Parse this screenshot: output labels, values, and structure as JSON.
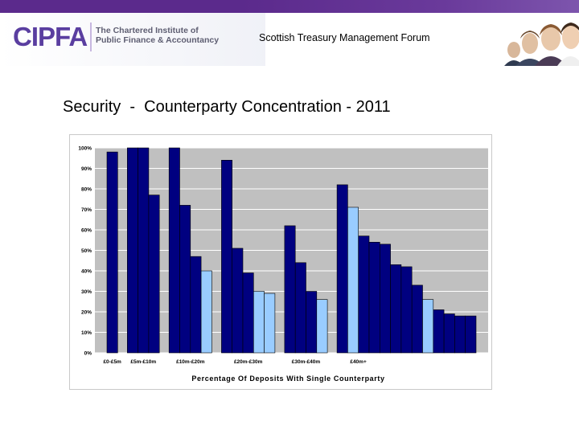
{
  "header": {
    "logo_word": "CIPFA",
    "logo_tagline_line1": "The Chartered Institute of",
    "logo_tagline_line2": "Public Finance & Accountancy",
    "forum_title": "Scottish Treasury Management Forum",
    "brand_purple": "#5b2a8c",
    "photo_icon": "people-photo-icon"
  },
  "slide": {
    "title": "Security  -  Counterparty Concentration - 2011"
  },
  "chart_data": {
    "type": "bar",
    "title": "",
    "xlabel": "Percentage Of Deposits With Single Counterparty",
    "ylabel": "",
    "ylim": [
      0,
      100
    ],
    "y_ticks": [
      "0%",
      "10%",
      "20%",
      "30%",
      "40%",
      "50%",
      "60%",
      "70%",
      "80%",
      "90%",
      "100%"
    ],
    "grid": true,
    "plot_background": "#c0c0c0",
    "group_labels": [
      "£0-£5m",
      "£5m-£10m",
      "£10m-£20m",
      "£20m-£30m",
      "£30m-£40m",
      "£40m+"
    ],
    "groups": [
      {
        "label": "£0-£5m",
        "values": [
          98
        ],
        "highlight": [
          false
        ]
      },
      {
        "label": "£5m-£10m",
        "values": [
          100,
          100,
          77
        ],
        "highlight": [
          false,
          false,
          false
        ]
      },
      {
        "label": "£10m-£20m",
        "values": [
          100,
          72,
          47,
          40
        ],
        "highlight": [
          false,
          false,
          false,
          true
        ]
      },
      {
        "label": "£20m-£30m",
        "values": [
          94,
          51,
          39,
          30,
          29
        ],
        "highlight": [
          false,
          false,
          false,
          true,
          true
        ]
      },
      {
        "label": "£30m-£40m",
        "values": [
          62,
          44,
          30,
          26
        ],
        "highlight": [
          false,
          false,
          false,
          true
        ]
      },
      {
        "label": "£40m+",
        "values": [
          82,
          71,
          57,
          54,
          53,
          43,
          42,
          33,
          26,
          21,
          19,
          18,
          18
        ],
        "highlight": [
          false,
          true,
          false,
          false,
          false,
          false,
          false,
          false,
          true,
          false,
          false,
          false,
          false
        ]
      }
    ],
    "colors": {
      "bar": "#000080",
      "highlight_bar": "#99ccff",
      "bar_edge": "#000000"
    }
  }
}
